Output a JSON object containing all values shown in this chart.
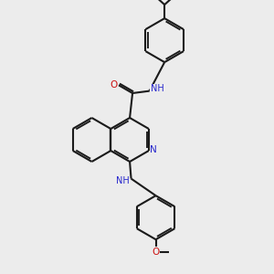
{
  "bg_color": "#ececec",
  "bond_color": "#1a1a1a",
  "N_color": "#2525cc",
  "O_color": "#cc1010",
  "line_width": 1.5,
  "figsize": [
    3.0,
    3.0
  ],
  "dpi": 100,
  "xlim": [
    0,
    10
  ],
  "ylim": [
    0,
    10
  ],
  "ring_r": 0.8
}
